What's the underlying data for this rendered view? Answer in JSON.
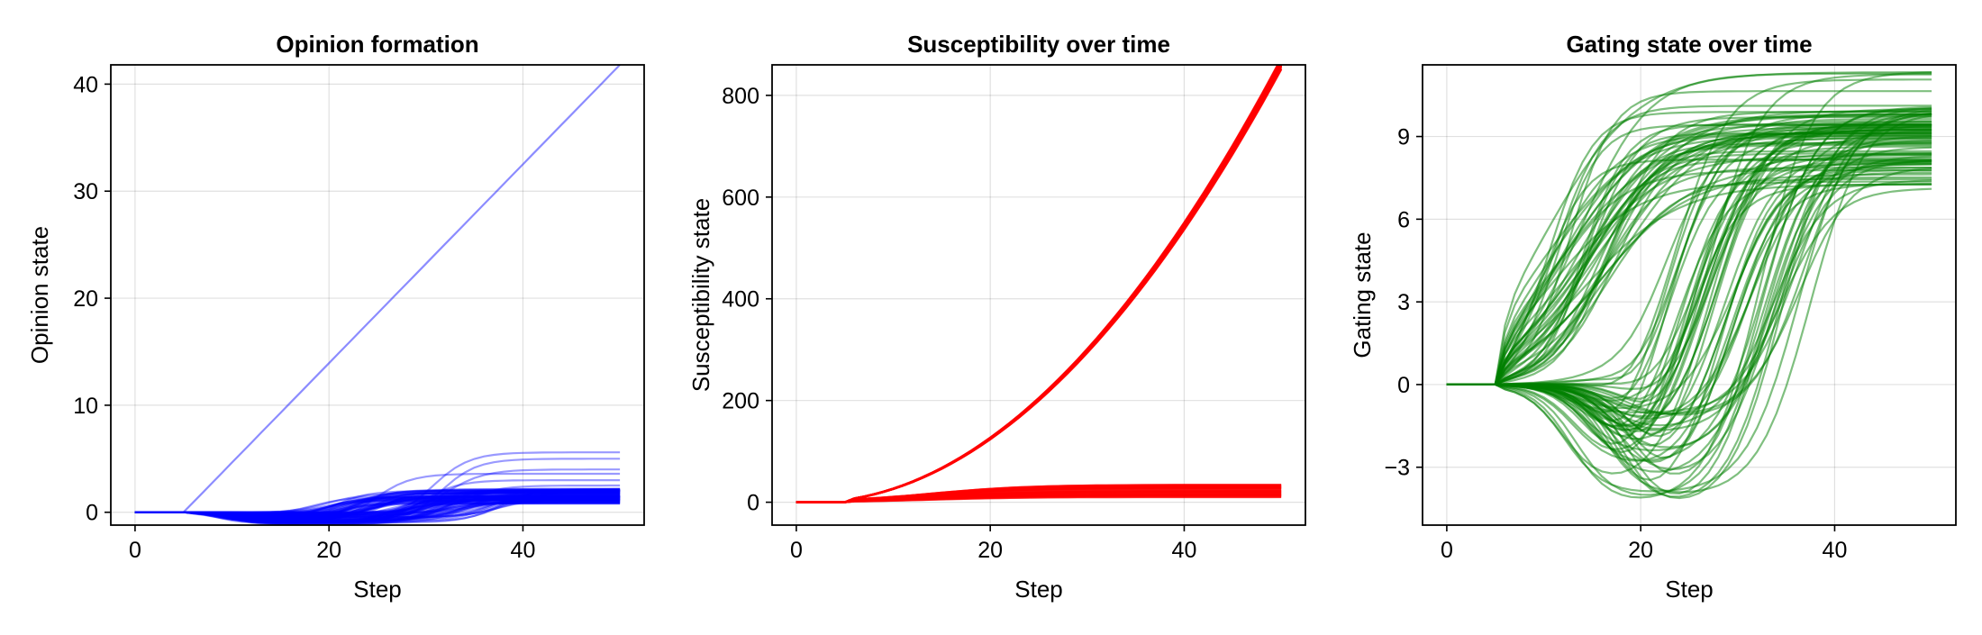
{
  "chart_data": [
    {
      "type": "line",
      "title": "Opinion formation",
      "xlabel": "Step",
      "ylabel": "Opinion state",
      "color": "#0000ff",
      "xlim": [
        -2.5,
        52.5
      ],
      "ylim": [
        -1.2,
        41.8
      ],
      "xticks": [
        0,
        20,
        40
      ],
      "yticks": [
        0,
        10,
        20,
        30,
        40
      ],
      "grid": true,
      "n_series": 100,
      "series_summary": {
        "flat_until_step": 5,
        "outlier_line": {
          "name": "",
          "points": [
            [
              5,
              0
            ],
            [
              50,
              41.8
            ]
          ]
        },
        "final_values_range": [
          0.8,
          5.6
        ],
        "typical_final_values": [
          5.6,
          5.0,
          4.0,
          3.6,
          3.0,
          2.5,
          2.0,
          1.8,
          1.5,
          1.2,
          1.0
        ]
      }
    },
    {
      "type": "line",
      "title": "Susceptibility over time",
      "xlabel": "Step",
      "ylabel": "Susceptibility state",
      "color": "#ff0000",
      "xlim": [
        -2.5,
        52.5
      ],
      "ylim": [
        -45,
        860
      ],
      "xticks": [
        0,
        20,
        40
      ],
      "yticks": [
        0,
        200,
        400,
        600,
        800
      ],
      "grid": true,
      "n_series": 100,
      "series_summary": {
        "flat_until_step": 5,
        "upper_bundle": {
          "shape": "quadratic",
          "points": [
            [
              0,
              0
            ],
            [
              10,
              12
            ],
            [
              20,
              85
            ],
            [
              30,
              270
            ],
            [
              40,
              520
            ],
            [
              50,
              850
            ]
          ]
        },
        "lower_bundle_final_range": [
          10,
          35
        ]
      }
    },
    {
      "type": "line",
      "title": "Gating state over time",
      "xlabel": "Step",
      "ylabel": "Gating state",
      "color": "#008000",
      "xlim": [
        -2.5,
        52.5
      ],
      "ylim": [
        -5.1,
        11.6
      ],
      "xticks": [
        0,
        20,
        40
      ],
      "yticks": [
        -3,
        0,
        3,
        6,
        9
      ],
      "grid": true,
      "n_series": 100,
      "series_summary": {
        "flat_until_step": 5,
        "min_dip": -5.0,
        "final_values_range": [
          6.9,
          11.5
        ]
      }
    }
  ]
}
